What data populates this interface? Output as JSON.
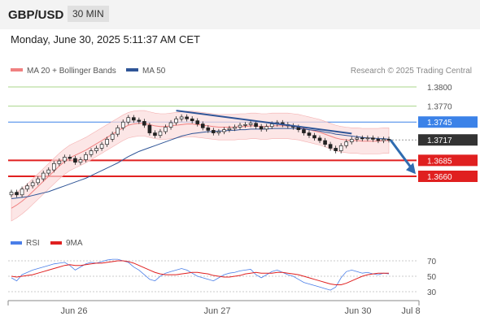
{
  "header": {
    "symbol": "GBP/USD",
    "timeframe": "30 MIN",
    "datetime": "Monday, June 30, 2025 5:11:37 AM CET"
  },
  "legend": {
    "ma20_label": "MA 20 + Bollinger Bands",
    "ma50_label": "MA 50",
    "ma20_color": "#f08080",
    "ma50_color": "#2f5597",
    "credit": "Research © 2025 Trading Central"
  },
  "rsi_legend": {
    "rsi_label": "RSI",
    "ma9_label": "9MA",
    "rsi_color": "#4a7ee8",
    "ma9_color": "#e02020"
  },
  "chart_data": [
    {
      "type": "line",
      "panel": "price",
      "y_levels": [
        {
          "value": 1.38,
          "label": "1.3800",
          "kind": "resistance",
          "color": "#6aaa2e"
        },
        {
          "value": 1.377,
          "label": "1.3770",
          "kind": "resistance",
          "color": "#6aaa2e"
        },
        {
          "value": 1.3745,
          "label": "1.3745",
          "kind": "pivot",
          "color": "#3b82e8"
        },
        {
          "value": 1.3717,
          "label": "1.3717",
          "kind": "last-price",
          "color": "#333333"
        },
        {
          "value": 1.3685,
          "label": "1.3685",
          "kind": "support",
          "color": "#e02020"
        },
        {
          "value": 1.366,
          "label": "1.3660",
          "kind": "support",
          "color": "#e02020"
        }
      ],
      "x_labels": [
        "Jun 26",
        "Jun 27",
        "Jun 30",
        "Jul 8"
      ],
      "close_series": [
        1.3635,
        1.3631,
        1.364,
        1.3645,
        1.365,
        1.3656,
        1.3665,
        1.367,
        1.368,
        1.3684,
        1.369,
        1.3688,
        1.3682,
        1.3686,
        1.3694,
        1.37,
        1.3704,
        1.371,
        1.3718,
        1.3726,
        1.3736,
        1.3745,
        1.3752,
        1.3748,
        1.3746,
        1.374,
        1.3728,
        1.3724,
        1.373,
        1.3737,
        1.3744,
        1.375,
        1.3753,
        1.375,
        1.3747,
        1.3742,
        1.3736,
        1.3732,
        1.3728,
        1.373,
        1.3733,
        1.3735,
        1.3737,
        1.374,
        1.3741,
        1.3743,
        1.3738,
        1.3734,
        1.3738,
        1.3742,
        1.3744,
        1.3741,
        1.3739,
        1.3737,
        1.3733,
        1.3728,
        1.3724,
        1.372,
        1.3716,
        1.371,
        1.3704,
        1.37,
        1.3708,
        1.3714,
        1.3718,
        1.372,
        1.3719,
        1.372,
        1.3718,
        1.3716,
        1.3718,
        1.3717
      ],
      "ma20": [
        1.361,
        1.3615,
        1.3621,
        1.3628,
        1.3636,
        1.3644,
        1.3652,
        1.366,
        1.3668,
        1.3676,
        1.3683,
        1.3689,
        1.3693,
        1.3697,
        1.3701,
        1.3706,
        1.3711,
        1.3716,
        1.3721,
        1.3726,
        1.3731,
        1.3736,
        1.374,
        1.3742,
        1.3743,
        1.3743,
        1.3741,
        1.3739,
        1.3738,
        1.3738,
        1.3739,
        1.374,
        1.3741,
        1.3742,
        1.3742,
        1.3741,
        1.374,
        1.3739,
        1.3738,
        1.3737,
        1.3737,
        1.3737,
        1.3737,
        1.3738,
        1.3738,
        1.3739,
        1.3739,
        1.3738,
        1.3738,
        1.3739,
        1.3739,
        1.3739,
        1.3739,
        1.3738,
        1.3737,
        1.3735,
        1.3733,
        1.3731,
        1.3729,
        1.3726,
        1.3723,
        1.372,
        1.3718,
        1.3717,
        1.3716,
        1.3716,
        1.3715,
        1.3715,
        1.3715,
        1.3715,
        1.3716,
        1.3716
      ],
      "ma50": [
        1.3625,
        1.3626,
        1.3627,
        1.3628,
        1.363,
        1.3632,
        1.3634,
        1.3636,
        1.3639,
        1.3642,
        1.3645,
        1.3648,
        1.3651,
        1.3654,
        1.3657,
        1.3661,
        1.3665,
        1.3669,
        1.3673,
        1.3677,
        1.3681,
        1.3686,
        1.3691,
        1.3695,
        1.3699,
        1.3702,
        1.3705,
        1.3708,
        1.3711,
        1.3714,
        1.3717,
        1.372,
        1.3723,
        1.3725,
        1.3727,
        1.3728,
        1.3729,
        1.373,
        1.373,
        1.3731,
        1.3731,
        1.3732,
        1.3732,
        1.3733,
        1.3733,
        1.3734,
        1.3734,
        1.3734,
        1.3734,
        1.3735,
        1.3735,
        1.3735,
        1.3735,
        1.3735,
        1.3735,
        1.3734,
        1.3733,
        1.3732,
        1.3731,
        1.3729,
        1.3728,
        1.3726,
        1.3725,
        1.3724,
        1.3723,
        1.3722,
        1.3721,
        1.372,
        1.372,
        1.3719,
        1.3719,
        1.3718
      ],
      "bb_width": 0.002,
      "trendline": {
        "from_index": 31,
        "from_value": 1.3763,
        "to_index": 64,
        "to_value": 1.3727
      },
      "arrow": {
        "from_value": 1.3717,
        "to_value": 1.3666,
        "direction": "down"
      }
    },
    {
      "type": "line",
      "panel": "rsi",
      "y_levels": [
        {
          "value": 70,
          "label": "70"
        },
        {
          "value": 50,
          "label": "50"
        },
        {
          "value": 30,
          "label": "30"
        }
      ],
      "rsi": [
        48,
        44,
        52,
        55,
        58,
        60,
        62,
        64,
        66,
        67,
        68,
        64,
        58,
        62,
        66,
        68,
        67,
        69,
        71,
        72,
        72,
        70,
        68,
        62,
        58,
        52,
        46,
        44,
        50,
        54,
        56,
        58,
        60,
        58,
        54,
        50,
        48,
        46,
        44,
        48,
        52,
        54,
        55,
        57,
        58,
        59,
        52,
        48,
        52,
        56,
        58,
        55,
        52,
        50,
        46,
        42,
        40,
        38,
        36,
        34,
        32,
        36,
        48,
        56,
        58,
        56,
        54,
        55,
        53,
        52,
        54,
        53
      ],
      "ma9": [
        50,
        49,
        50,
        51,
        52,
        54,
        56,
        58,
        60,
        62,
        64,
        65,
        64,
        64,
        65,
        66,
        67,
        67,
        68,
        69,
        70,
        70,
        69,
        67,
        64,
        61,
        58,
        55,
        53,
        52,
        52,
        52,
        53,
        54,
        55,
        55,
        54,
        53,
        51,
        50,
        49,
        49,
        50,
        51,
        53,
        54,
        55,
        54,
        54,
        54,
        55,
        55,
        54,
        53,
        52,
        50,
        48,
        46,
        44,
        42,
        40,
        39,
        39,
        41,
        44,
        47,
        50,
        52,
        53,
        54,
        54,
        54
      ]
    }
  ]
}
